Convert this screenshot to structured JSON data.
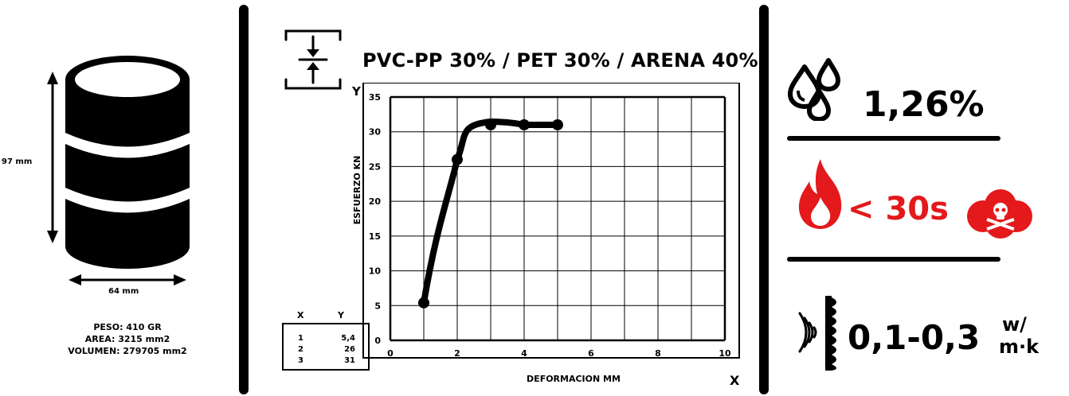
{
  "cylinder": {
    "height_label": "97 mm",
    "width_label": "64 mm",
    "specs": [
      "PESO: 410 GR",
      "AREA: 3215 mm2",
      "VOLUMEN: 279705 mm2"
    ]
  },
  "icons": {
    "compression": "compression-icon",
    "water": "water-drops-icon",
    "fire": "flame-icon",
    "smoke": "toxic-smoke-icon",
    "sound": "sound-wave-icon",
    "insulation": "insulation-wall-icon"
  },
  "colors": {
    "accent": "#e3191b",
    "ink": "#000000"
  },
  "chart_data": {
    "type": "line",
    "title": "PVC-PP 30% / PET 30% / ARENA 40%",
    "xlabel": "DEFORMACION MM",
    "ylabel": "ESFUERZO KN",
    "x_axis_letter": "X",
    "y_axis_letter": "Y",
    "xlim": [
      0,
      10
    ],
    "ylim": [
      0,
      35
    ],
    "xticks": [
      0,
      2,
      4,
      6,
      8,
      10
    ],
    "yticks": [
      0,
      5,
      10,
      15,
      20,
      25,
      30,
      35
    ],
    "grid": true,
    "points": [
      {
        "x": 1,
        "y": 5.4
      },
      {
        "x": 2,
        "y": 26
      },
      {
        "x": 3,
        "y": 31
      },
      {
        "x": 4,
        "y": 31
      },
      {
        "x": 5,
        "y": 31
      }
    ],
    "table": {
      "headers": [
        "X",
        "Y"
      ],
      "rows": [
        [
          "1",
          "5,4"
        ],
        [
          "2",
          "26"
        ],
        [
          "3",
          "31"
        ]
      ]
    }
  },
  "absorption": {
    "value": "1,26%"
  },
  "fire": {
    "value": "< 30s"
  },
  "thermal": {
    "value": "0,1-0,3",
    "unit_top": "w/",
    "unit_bottom": "m·k"
  }
}
